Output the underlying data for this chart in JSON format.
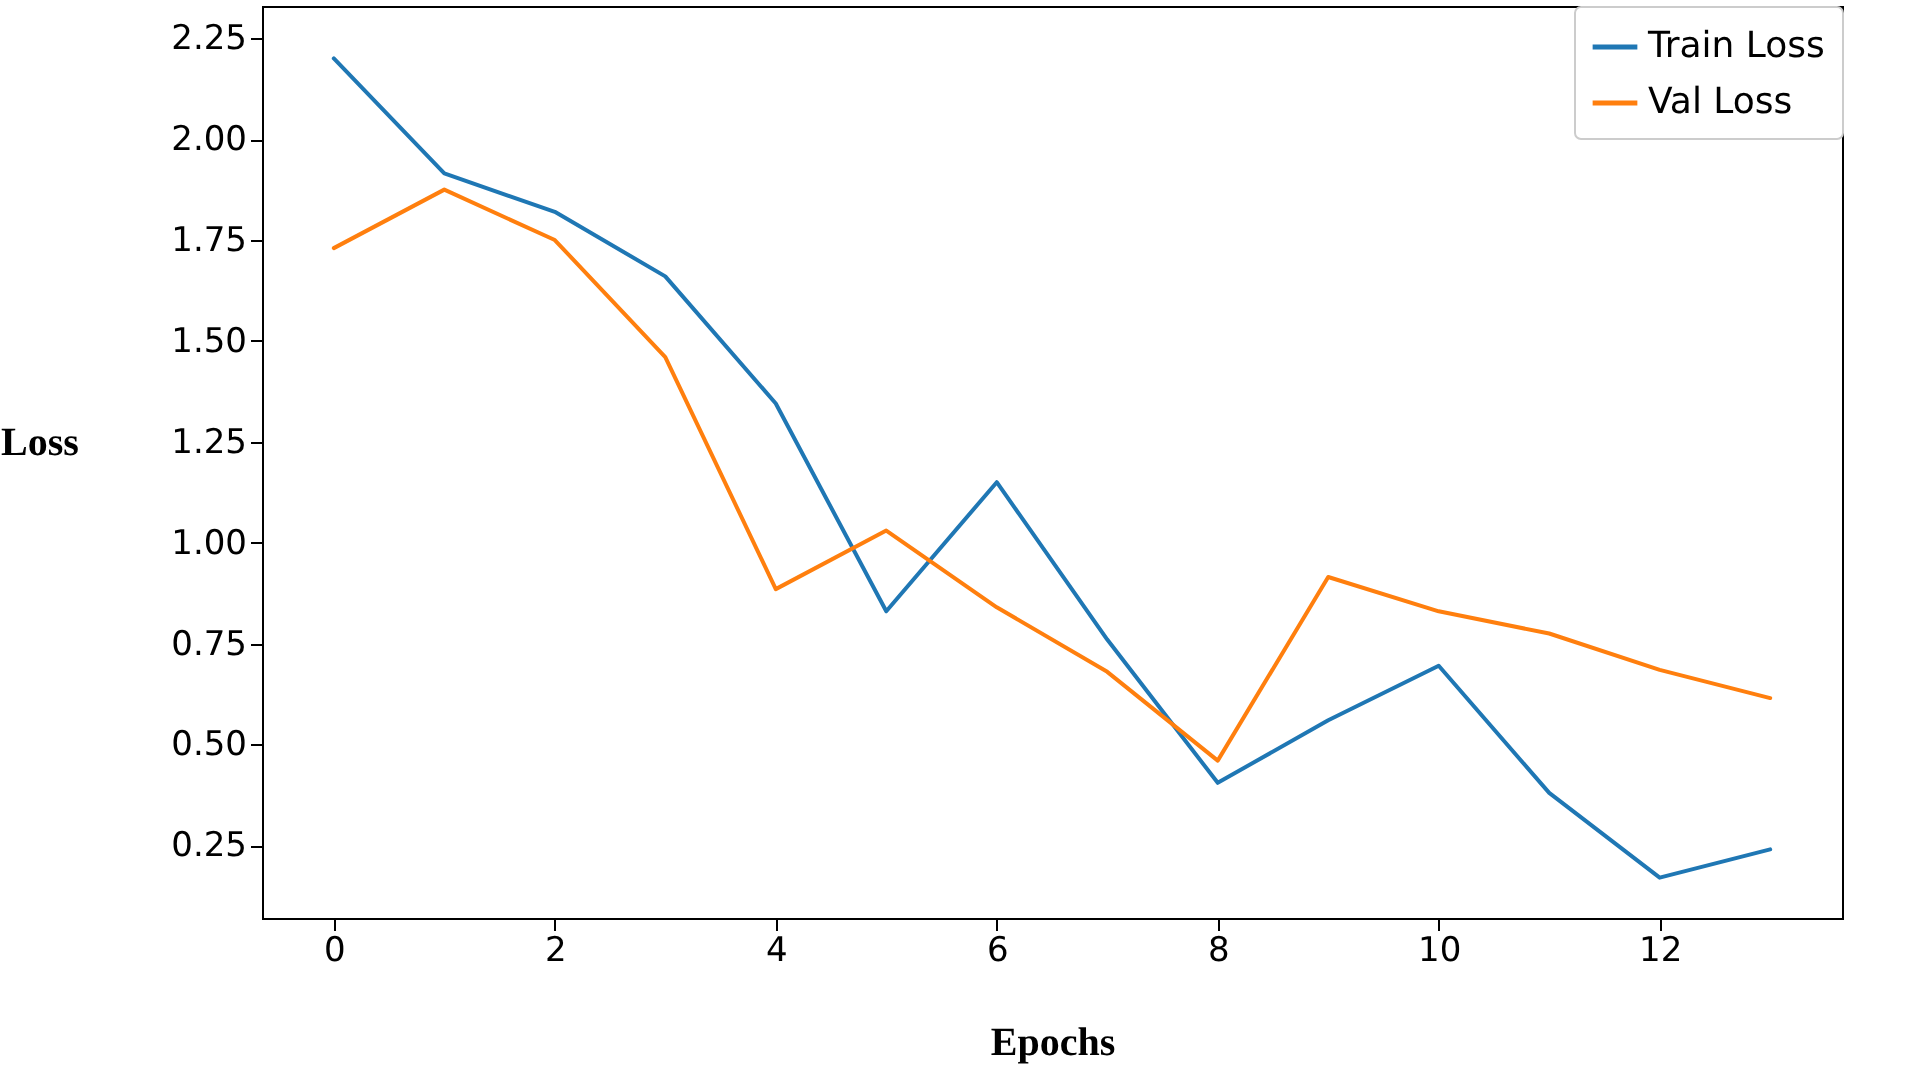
{
  "chart_data": {
    "type": "line",
    "xlabel": "Epochs",
    "ylabel": "Loss",
    "x": [
      0,
      1,
      2,
      3,
      4,
      5,
      6,
      7,
      8,
      9,
      10,
      11,
      12,
      13
    ],
    "series": [
      {
        "name": "Train Loss",
        "color": "#1f77b4",
        "values": [
          2.2,
          1.915,
          1.82,
          1.66,
          1.345,
          0.83,
          1.15,
          0.76,
          0.405,
          0.56,
          0.695,
          0.38,
          0.17,
          0.24
        ]
      },
      {
        "name": "Val Loss",
        "color": "#ff7f0e",
        "values": [
          1.73,
          1.875,
          1.75,
          1.46,
          0.885,
          1.03,
          0.84,
          0.68,
          0.46,
          0.915,
          0.83,
          0.775,
          0.685,
          0.615
        ]
      }
    ],
    "xlim": [
      -0.65,
      13.65
    ],
    "xticks": [
      0,
      2,
      4,
      6,
      8,
      10,
      12
    ],
    "ylim": [
      0.07,
      2.33
    ],
    "yticks": [
      0.25,
      {
        "value": 0.5,
        "label": "0.50"
      },
      0.75,
      {
        "value": 1,
        "label": "1.00"
      },
      1.25,
      {
        "value": 1.5,
        "label": "1.50"
      },
      1.75,
      {
        "value": 2,
        "label": "2.00"
      },
      2.25
    ],
    "grid": false,
    "legend": "top right",
    "marker": "none",
    "line_style": "solid"
  }
}
